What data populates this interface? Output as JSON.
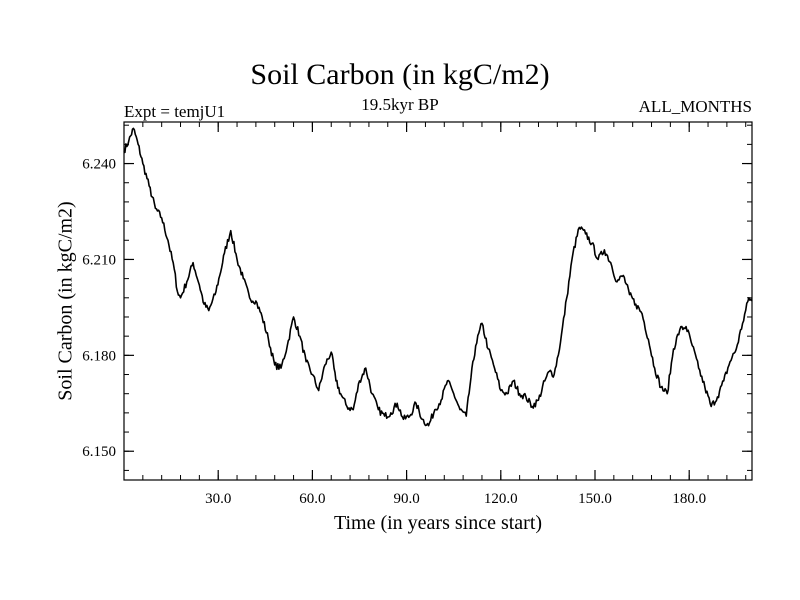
{
  "chart_data": {
    "type": "line",
    "title": "Soil Carbon (in kgC/m2)",
    "left_subtitle": "Expt = temjU1",
    "center_subtitle": "19.5kyr BP",
    "right_subtitle": "ALL_MONTHS",
    "xlabel": "Time (in years since start)",
    "ylabel": "Soil Carbon (in kgC/m2)",
    "xlim": [
      0,
      200
    ],
    "ylim": [
      6.141,
      6.253
    ],
    "xticks": [
      30,
      60,
      90,
      120,
      150,
      180
    ],
    "xtick_labels": [
      "30.0",
      "60.0",
      "90.0",
      "120.0",
      "150.0",
      "180.0"
    ],
    "yticks": [
      6.15,
      6.18,
      6.21,
      6.24
    ],
    "ytick_labels": [
      "6.150",
      "6.180",
      "6.210",
      "6.240"
    ],
    "grid": false,
    "series": [
      {
        "color": "#000000",
        "x": [
          0,
          1.5,
          3,
          4.5,
          6,
          8,
          10,
          12,
          14,
          16,
          17,
          18,
          20,
          22,
          24,
          25.5,
          27,
          29,
          30.5,
          32,
          34,
          36,
          38,
          40,
          42,
          44,
          46,
          48,
          50,
          52,
          54,
          56,
          58,
          60,
          62,
          64,
          66,
          67.5,
          69,
          71,
          73,
          75,
          77,
          79,
          81,
          83,
          85,
          87,
          89,
          91,
          93,
          95,
          97,
          99,
          101,
          103,
          105,
          107,
          109,
          110.5,
          112,
          114,
          116,
          118,
          120,
          122,
          124,
          126,
          128,
          130,
          132,
          134,
          135.5,
          137,
          139,
          141,
          143,
          145,
          147,
          149,
          151,
          153,
          155,
          157,
          159,
          161,
          163,
          165,
          167,
          169,
          171,
          173,
          175,
          177,
          179,
          181,
          183,
          185,
          187,
          189,
          191,
          193,
          195,
          197,
          199,
          200
        ],
        "y": [
          6.244,
          6.247,
          6.251,
          6.246,
          6.24,
          6.233,
          6.226,
          6.223,
          6.216,
          6.207,
          6.2,
          6.198,
          6.203,
          6.209,
          6.202,
          6.196,
          6.194,
          6.199,
          6.205,
          6.212,
          6.219,
          6.21,
          6.204,
          6.198,
          6.197,
          6.192,
          6.185,
          6.177,
          6.176,
          6.183,
          6.192,
          6.186,
          6.178,
          6.174,
          6.169,
          6.177,
          6.181,
          6.172,
          6.168,
          6.164,
          6.163,
          6.172,
          6.176,
          6.168,
          6.163,
          6.161,
          6.162,
          6.165,
          6.16,
          6.161,
          6.165,
          6.16,
          6.158,
          6.163,
          6.166,
          6.172,
          6.168,
          6.163,
          6.161,
          6.173,
          6.183,
          6.19,
          6.182,
          6.176,
          6.169,
          6.168,
          6.172,
          6.168,
          6.167,
          6.164,
          6.166,
          6.172,
          6.175,
          6.174,
          6.184,
          6.198,
          6.212,
          6.22,
          6.218,
          6.215,
          6.21,
          6.213,
          6.209,
          6.203,
          6.205,
          6.199,
          6.196,
          6.193,
          6.185,
          6.176,
          6.17,
          6.168,
          6.182,
          6.188,
          6.189,
          6.183,
          6.176,
          6.17,
          6.164,
          6.167,
          6.172,
          6.178,
          6.182,
          6.19,
          6.198,
          6.197
        ]
      }
    ]
  }
}
